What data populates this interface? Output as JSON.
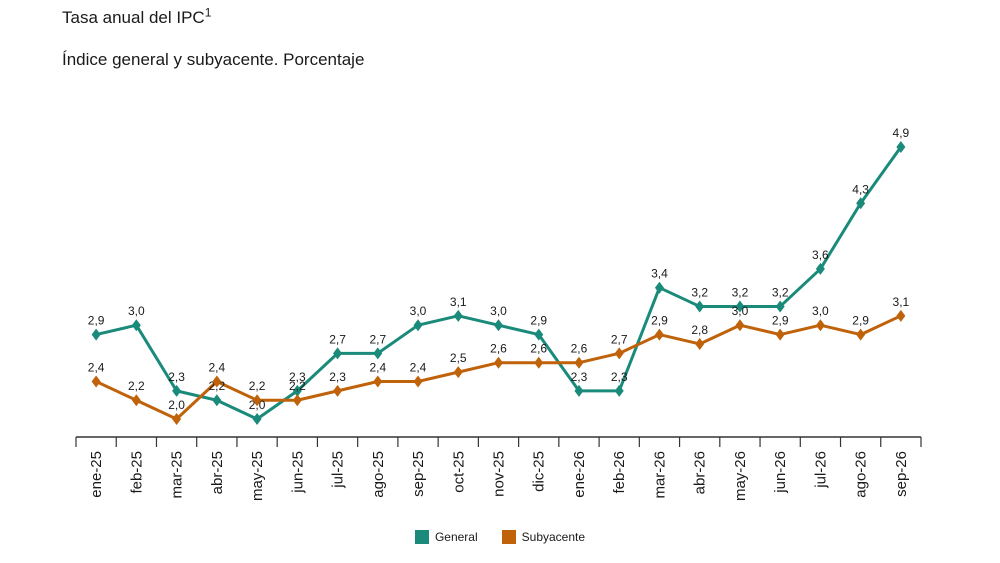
{
  "header": {
    "title": "Tasa anual del IPC",
    "title_sup": "1",
    "subtitle": "Índice general y subyacente. Porcentaje"
  },
  "colors": {
    "general": "#1a8a7a",
    "subyacente": "#c0620a",
    "axis": "#333333"
  },
  "chart_data": {
    "type": "line",
    "title": "Tasa anual del IPC",
    "subtitle": "Índice general y subyacente. Porcentaje",
    "xlabel": "",
    "ylabel": "",
    "ylim": [
      1.6,
      5.5
    ],
    "grid": false,
    "legend_placement": "bottom-center",
    "categories": [
      "ene-25",
      "feb-25",
      "mar-25",
      "abr-25",
      "may-25",
      "jun-25",
      "jul-25",
      "ago-25",
      "sep-25",
      "oct-25",
      "nov-25",
      "dic-25",
      "ene-26",
      "feb-26",
      "mar-26",
      "abr-26",
      "may-26",
      "jun-26",
      "jul-26",
      "ago-26",
      "sep-26"
    ],
    "series": [
      {
        "name": "General",
        "values": [
          2.9,
          3.0,
          2.3,
          2.2,
          2.0,
          2.3,
          2.7,
          2.7,
          3.0,
          3.1,
          3.0,
          2.9,
          2.3,
          2.3,
          3.4,
          3.2,
          3.2,
          3.2,
          3.6,
          4.3,
          4.9
        ],
        "labels": [
          "2,9",
          "3,0",
          "2,3",
          "2,2",
          "2,0",
          "2,3",
          "2,7",
          "2,7",
          "3,0",
          "3,1",
          "3,0",
          "2,9",
          "2,3",
          "2,3",
          "3,4",
          "3,2",
          "3,2",
          "3,2",
          "3,6",
          "4,3",
          "4,9"
        ]
      },
      {
        "name": "Subyacente",
        "values": [
          2.4,
          2.2,
          2.0,
          2.4,
          2.2,
          2.2,
          2.3,
          2.4,
          2.4,
          2.5,
          2.6,
          2.6,
          2.6,
          2.7,
          2.9,
          2.8,
          3.0,
          2.9,
          3.0,
          2.9,
          3.1
        ],
        "labels": [
          "2,4",
          "2,2",
          "2,0",
          "2,4",
          "2,2",
          "2,2",
          "2,3",
          "2,4",
          "2,4",
          "2,5",
          "2,6",
          "2,6",
          "2,6",
          "2,7",
          "2,9",
          "2,8",
          "3,0",
          "2,9",
          "3,0",
          "2,9",
          "3,1"
        ]
      }
    ]
  }
}
